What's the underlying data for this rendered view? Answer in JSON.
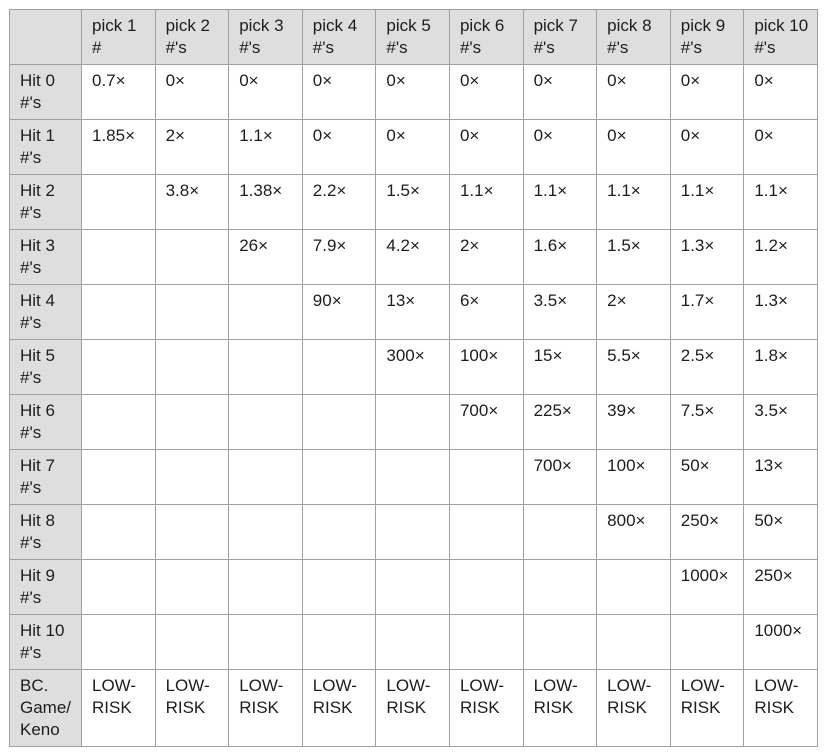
{
  "chart_data": {
    "type": "table",
    "columns": [
      "",
      "pick 1 #",
      "pick 2 #'s",
      "pick 3 #'s",
      "pick 4 #'s",
      "pick 5 #'s",
      "pick 6 #'s",
      "pick 7 #'s",
      "pick 8 #'s",
      "pick 9 #'s",
      "pick 10 #'s"
    ],
    "rows": [
      {
        "label": "Hit 0 #'s",
        "values": [
          "0.7×",
          "0×",
          "0×",
          "0×",
          "0×",
          "0×",
          "0×",
          "0×",
          "0×",
          "0×"
        ]
      },
      {
        "label": "Hit 1 #'s",
        "values": [
          "1.85×",
          "2×",
          "1.1×",
          "0×",
          "0×",
          "0×",
          "0×",
          "0×",
          "0×",
          "0×"
        ]
      },
      {
        "label": "Hit 2 #'s",
        "values": [
          "",
          "3.8×",
          "1.38×",
          "2.2×",
          "1.5×",
          "1.1×",
          "1.1×",
          "1.1×",
          "1.1×",
          "1.1×"
        ]
      },
      {
        "label": "Hit 3 #'s",
        "values": [
          "",
          "",
          "26×",
          "7.9×",
          "4.2×",
          "2×",
          "1.6×",
          "1.5×",
          "1.3×",
          "1.2×"
        ]
      },
      {
        "label": "Hit 4 #'s",
        "values": [
          "",
          "",
          "",
          "90×",
          "13×",
          "6×",
          "3.5×",
          "2×",
          "1.7×",
          "1.3×"
        ]
      },
      {
        "label": "Hit 5 #'s",
        "values": [
          "",
          "",
          "",
          "",
          "300×",
          "100×",
          "15×",
          "5.5×",
          "2.5×",
          "1.8×"
        ]
      },
      {
        "label": "Hit 6 #'s",
        "values": [
          "",
          "",
          "",
          "",
          "",
          "700×",
          "225×",
          "39×",
          "7.5×",
          "3.5×"
        ]
      },
      {
        "label": "Hit 7 #'s",
        "values": [
          "",
          "",
          "",
          "",
          "",
          "",
          "700×",
          "100×",
          "50×",
          "13×"
        ]
      },
      {
        "label": "Hit 8 #'s",
        "values": [
          "",
          "",
          "",
          "",
          "",
          "",
          "",
          "800×",
          "250×",
          "50×"
        ]
      },
      {
        "label": "Hit 9 #'s",
        "values": [
          "",
          "",
          "",
          "",
          "",
          "",
          "",
          "",
          "1000×",
          "250×"
        ]
      },
      {
        "label": "Hit 10 #'s",
        "values": [
          "",
          "",
          "",
          "",
          "",
          "",
          "",
          "",
          "",
          "1000×"
        ]
      },
      {
        "label": "BC. Game/Keno",
        "values": [
          "LOW-RISK",
          "LOW-RISK",
          "LOW-RISK",
          "LOW-RISK",
          "LOW-RISK",
          "LOW-RISK",
          "LOW-RISK",
          "LOW-RISK",
          "LOW-RISK",
          "LOW-RISK"
        ]
      }
    ]
  },
  "colors": {
    "header_bg": "#dedede",
    "border": "#a0a0a0",
    "text": "#1d1d1d",
    "page_bg": "#ffffff"
  }
}
